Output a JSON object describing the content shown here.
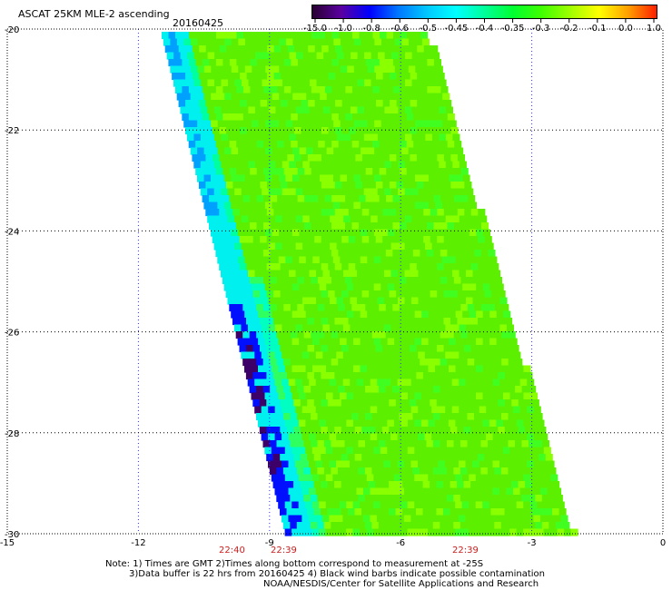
{
  "header": {
    "title": "ASCAT 25KM MLE-2 ascending",
    "date": "20160425"
  },
  "colorbar": {
    "tick_labels": [
      "-15.0",
      "-1.0",
      "-0.8",
      "-0.6",
      "-0.5",
      "-0.45",
      "-0.4",
      "-0.35",
      "-0.3",
      "-0.2",
      "-0.1",
      "0.0",
      "1.0"
    ],
    "gradient": [
      "#280030",
      "#5a00a0",
      "#0000ff",
      "#0078ff",
      "#00c8ff",
      "#00ffff",
      "#00ff9a",
      "#00ff30",
      "#40ff00",
      "#a0ff00",
      "#ffff00",
      "#ffa000",
      "#ff1e00"
    ]
  },
  "map": {
    "lon_ticks": [
      "-15",
      "-12",
      "-9",
      "-6",
      "-3",
      "0"
    ],
    "lat_ticks": [
      "-20",
      "-22",
      "-24",
      "-26",
      "-28",
      "-30"
    ],
    "times": [
      "22:40",
      "22:39",
      "22:39"
    ]
  },
  "footer": {
    "line1": "Note: 1) Times are GMT 2)Times along bottom correspond to measurement at -25S",
    "line2": "3)Data buffer is 22 hrs from 20160425 4) Black wind barbs indicate possible contamination",
    "line3": "NOAA/NESDIS/Center for Satellite Applications and Research"
  },
  "colors": {
    "swath_main": "#5cf000",
    "swath_light": "#8aff00",
    "swath_cyan": "#00f0f0",
    "swath_blue": "#0010ff",
    "swath_dark": "#3c0068",
    "time_label": "#c81e1e",
    "grid": "#000000",
    "meridian": "#3030ff"
  }
}
